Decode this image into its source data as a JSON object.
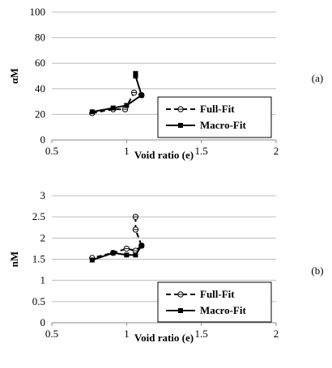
{
  "chart_data": [
    {
      "type": "line",
      "panel_label": "(a)",
      "xlabel": "Void ratio (e)",
      "ylabel": "αM",
      "xlim": [
        0.5,
        2
      ],
      "ylim": [
        0,
        100
      ],
      "xticks": [
        "0.5",
        "1",
        "1.5",
        "2"
      ],
      "yticks": [
        "0",
        "20",
        "40",
        "60",
        "80",
        "100"
      ],
      "grid": "horizontal",
      "legend_position": "bottom-right",
      "series": [
        {
          "name": "Full-Fit",
          "style": "dashed",
          "marker": "open-circle",
          "points": [
            [
              0.77,
              21
            ],
            [
              0.91,
              24
            ],
            [
              0.99,
              24
            ],
            [
              1.05,
              37
            ],
            [
              1.1,
              35
            ]
          ]
        },
        {
          "name": "Macro-Fit",
          "style": "solid",
          "marker": "filled-square",
          "points": [
            [
              1.06,
              52
            ],
            [
              1.06,
              50
            ],
            [
              1.1,
              35
            ],
            [
              1.0,
              27
            ],
            [
              0.91,
              25
            ],
            [
              0.77,
              22
            ]
          ]
        }
      ]
    },
    {
      "type": "line",
      "panel_label": "(b)",
      "xlabel": "Void ratio (e)",
      "ylabel": "nM",
      "xlim": [
        0.5,
        2
      ],
      "ylim": [
        0,
        3
      ],
      "xticks": [
        "0.5",
        "1",
        "1.5",
        "2"
      ],
      "yticks": [
        "0",
        "0.5",
        "1",
        "1.5",
        "2",
        "2.5",
        "3"
      ],
      "grid": "horizontal",
      "legend_position": "bottom-right",
      "series": [
        {
          "name": "Full-Fit",
          "style": "dashed",
          "marker": "open-circle",
          "points": [
            [
              1.06,
              2.5
            ],
            [
              1.06,
              2.2
            ],
            [
              1.1,
              1.82
            ],
            [
              1.06,
              1.7
            ],
            [
              1.0,
              1.75
            ],
            [
              0.91,
              1.65
            ],
            [
              0.77,
              1.53
            ]
          ]
        },
        {
          "name": "Macro-Fit",
          "style": "solid",
          "marker": "filled-square",
          "points": [
            [
              1.1,
              1.82
            ],
            [
              1.06,
              1.6
            ],
            [
              1.0,
              1.6
            ],
            [
              0.91,
              1.65
            ],
            [
              0.77,
              1.48
            ]
          ]
        }
      ]
    }
  ]
}
